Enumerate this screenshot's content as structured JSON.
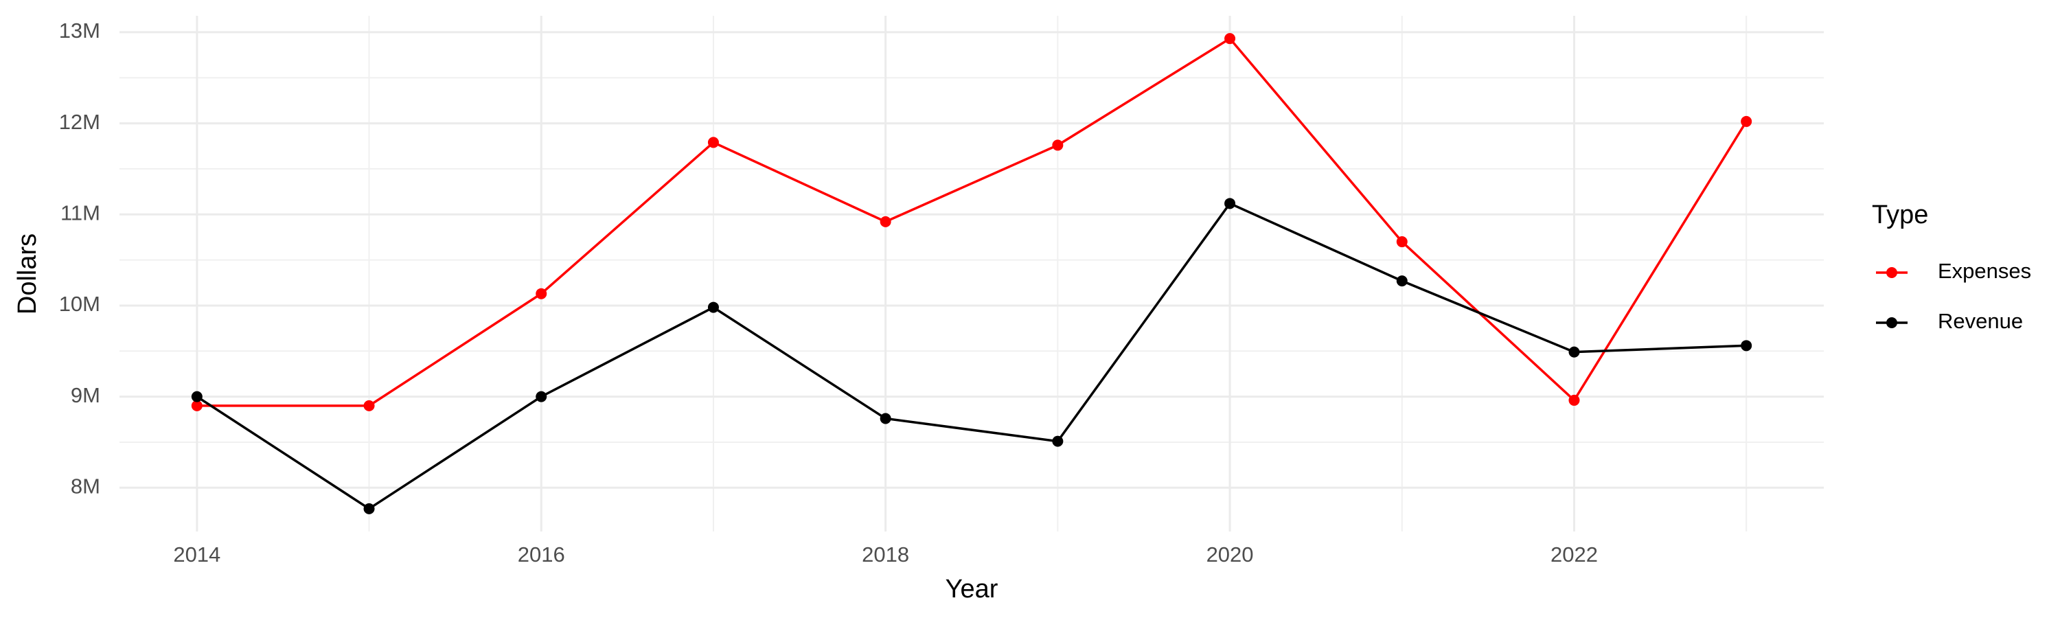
{
  "chart_data": {
    "type": "line",
    "x_label": "Year",
    "y_label": "Dollars",
    "legend_title": "Type",
    "x": [
      2014,
      2015,
      2016,
      2017,
      2018,
      2019,
      2020,
      2021,
      2022,
      2023
    ],
    "series": [
      {
        "name": "Expenses",
        "color": "#ff0000",
        "values": [
          8900000,
          8900000,
          10130000,
          11790000,
          10920000,
          11760000,
          12930000,
          10700000,
          8960000,
          12020000
        ]
      },
      {
        "name": "Revenue",
        "color": "#000000",
        "values": [
          9000000,
          7770000,
          9000000,
          9980000,
          8760000,
          8510000,
          11120000,
          10270000,
          9490000,
          9560000
        ]
      }
    ],
    "xlim": [
      2013.55,
      2023.45
    ],
    "xticks": [
      2014,
      2016,
      2018,
      2020,
      2022
    ],
    "ylim": [
      7520000,
      13180000
    ],
    "yticks": [
      {
        "value": 8000000,
        "label": "8M"
      },
      {
        "value": 9000000,
        "label": "9M"
      },
      {
        "value": 10000000,
        "label": "10M"
      },
      {
        "value": 11000000,
        "label": "11M"
      },
      {
        "value": 12000000,
        "label": "12M"
      },
      {
        "value": 13000000,
        "label": "13M"
      }
    ],
    "grid": true,
    "legend_position": "right"
  }
}
